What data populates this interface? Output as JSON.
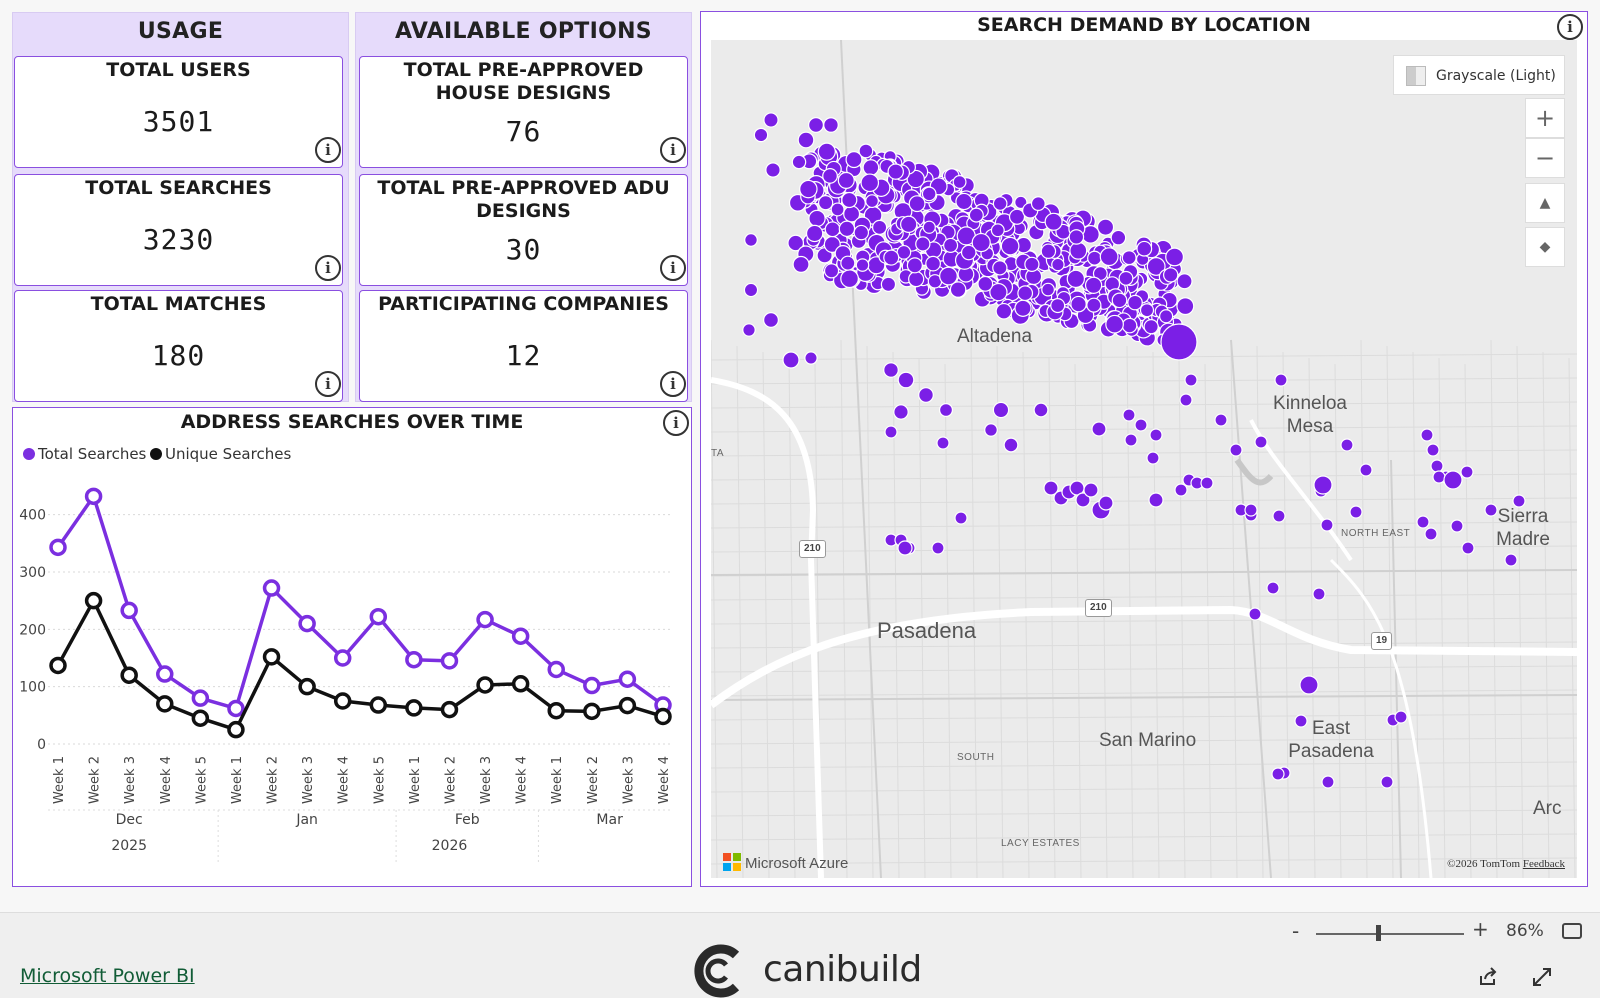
{
  "usage": {
    "title": "USAGE",
    "cards": [
      {
        "title": "TOTAL USERS",
        "value": "3501"
      },
      {
        "title": "TOTAL SEARCHES",
        "value": "3230"
      },
      {
        "title": "TOTAL MATCHES",
        "value": "180"
      }
    ]
  },
  "options": {
    "title": "AVAILABLE OPTIONS",
    "cards": [
      {
        "title": "TOTAL PRE-APPROVED HOUSE DESIGNS",
        "value": "76"
      },
      {
        "title": "TOTAL PRE-APPROVED ADU DESIGNS",
        "value": "30"
      },
      {
        "title": "PARTICIPATING COMPANIES",
        "value": "12"
      }
    ]
  },
  "info_glyph": "i",
  "chart_data": {
    "type": "line",
    "title": "ADDRESS SEARCHES OVER TIME",
    "categories": [
      "Week 1",
      "Week 2",
      "Week 3",
      "Week 4",
      "Week 5",
      "Week 1",
      "Week 2",
      "Week 3",
      "Week 4",
      "Week 5",
      "Week 1",
      "Week 2",
      "Week 3",
      "Week 4",
      "Week 1",
      "Week 2",
      "Week 3",
      "Week 4"
    ],
    "months": [
      {
        "label": "Dec",
        "span": 5
      },
      {
        "label": "Jan",
        "span": 5
      },
      {
        "label": "Feb",
        "span": 4
      },
      {
        "label": "Mar",
        "span": 4
      }
    ],
    "years": [
      {
        "label": "2025",
        "span": 5
      },
      {
        "label": "2026",
        "span": 13
      }
    ],
    "series": [
      {
        "name": "Total Searches",
        "color": "#7b2fe0",
        "values": [
          343,
          432,
          233,
          122,
          80,
          62,
          272,
          210,
          150,
          222,
          147,
          145,
          217,
          188,
          130,
          102,
          113,
          68
        ]
      },
      {
        "name": "Unique Searches",
        "color": "#111111",
        "values": [
          137,
          250,
          120,
          70,
          45,
          25,
          152,
          100,
          75,
          68,
          63,
          60,
          103,
          105,
          58,
          57,
          67,
          48
        ]
      }
    ],
    "ylim": [
      0,
      450
    ],
    "yticks": [
      0,
      100,
      200,
      300,
      400
    ],
    "grid": true,
    "legend": "top-left"
  },
  "map": {
    "title": "SEARCH DEMAND BY LOCATION",
    "style_label": "Grayscale (Light)",
    "zoom_in": "+",
    "zoom_out": "−",
    "pitch_glyph": "▲",
    "compass_glyph": "◆",
    "places": {
      "altadena": "Altadena",
      "kinneloa": "Kinneloa Mesa",
      "pasadena": "Pasadena",
      "sierra_madre": "Sierra Madre",
      "san_marino": "San Marino",
      "east_pasadena": "East Pasadena",
      "arc": "Arc",
      "north_east": "NORTH EAST",
      "south": "SOUTH",
      "lacy": "LACY ESTATES",
      "ta": "TA"
    },
    "shields": {
      "i210a": "210",
      "i210b": "210",
      "r19": "19"
    },
    "attribution_left": "Microsoft Azure",
    "attribution_right": "©2026 TomTom",
    "feedback": "Feedback",
    "dot_color": "#7b1fe6"
  },
  "footer": {
    "zoom_minus": "-",
    "zoom_plus": "+",
    "zoom_level": "86%",
    "powerbi_link": "Microsoft Power BI",
    "brand": "canibuild"
  }
}
